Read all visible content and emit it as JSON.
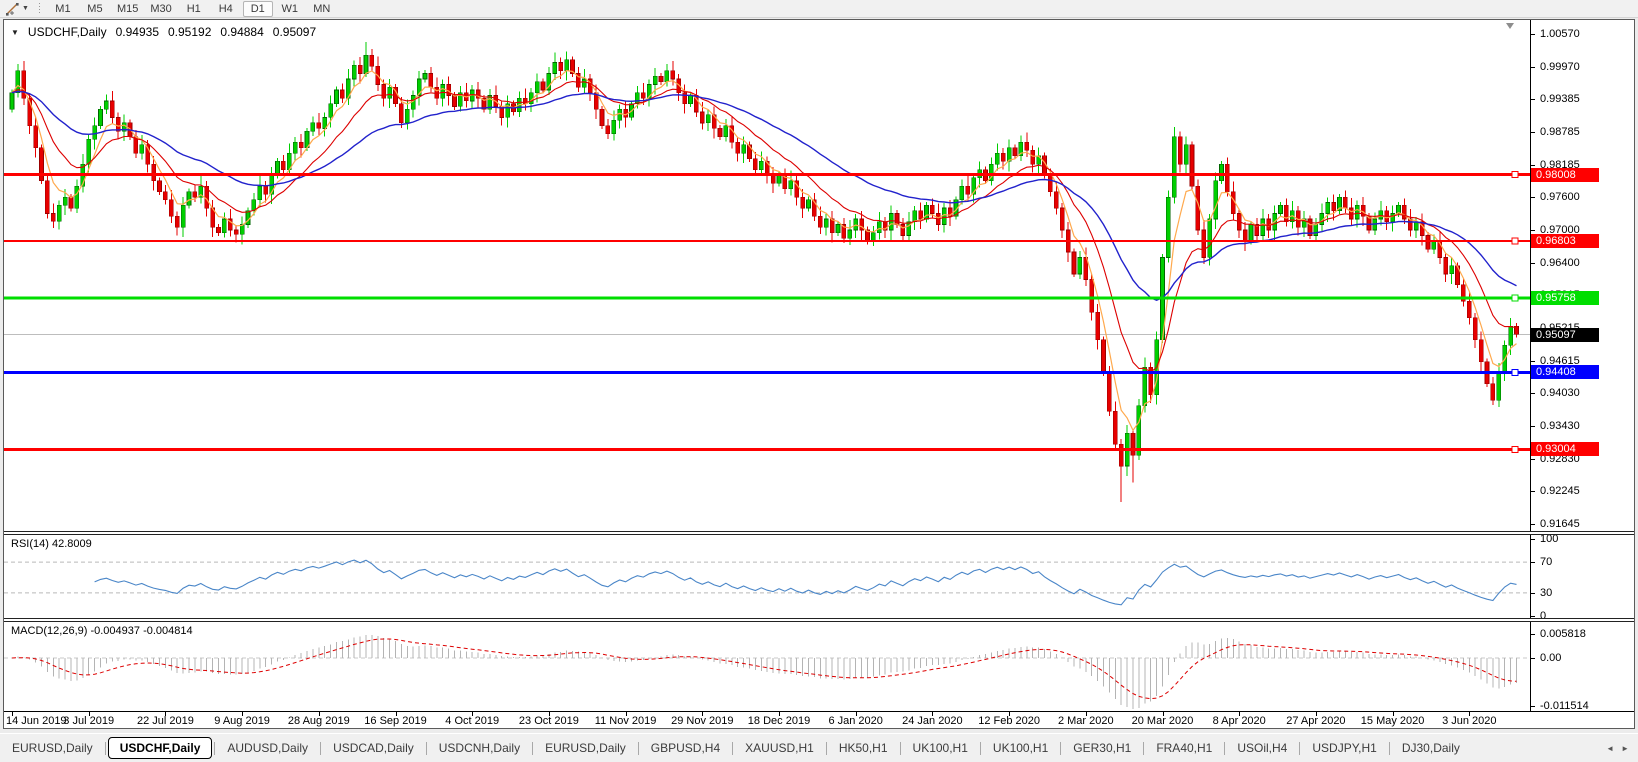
{
  "toolbar": {
    "timeframes": [
      "M1",
      "M5",
      "M15",
      "M30",
      "H1",
      "H4",
      "D1",
      "W1",
      "MN"
    ],
    "active": "D1"
  },
  "chart": {
    "type": "candlestick",
    "symbol_period": "USDCHF,Daily",
    "ohlc": {
      "open": "0.94935",
      "high": "0.95192",
      "low": "0.94884",
      "close": "0.95097"
    },
    "price_ticks": [
      "1.00570",
      "0.99970",
      "0.99385",
      "0.98785",
      "0.98185",
      "0.97600",
      "0.97000",
      "0.96400",
      "0.95815",
      "0.95215",
      "0.94615",
      "0.94030",
      "0.93430",
      "0.92830",
      "0.92245",
      "0.91645"
    ],
    "hlines": [
      {
        "label": "0.98008",
        "value": 0.98008,
        "color": "#FF0000",
        "thickness": 3
      },
      {
        "label": "0.96803",
        "value": 0.96803,
        "color": "#FF0000",
        "thickness": 2
      },
      {
        "label": "0.95758",
        "value": 0.95758,
        "color": "#00DE00",
        "thickness": 3
      },
      {
        "label": "0.94408",
        "value": 0.94408,
        "color": "#0000FF",
        "thickness": 3
      },
      {
        "label": "0.93004",
        "value": 0.93004,
        "color": "#FF0000",
        "thickness": 3
      }
    ],
    "current_price": {
      "label": "0.95097",
      "value": 0.95097,
      "line_color": "#bdbdbd",
      "tag_bg": "#000000"
    },
    "date_ticks": [
      "14 Jun 2019",
      "3 Jul 2019",
      "22 Jul 2019",
      "9 Aug 2019",
      "28 Aug 2019",
      "16 Sep 2019",
      "4 Oct 2019",
      "23 Oct 2019",
      "11 Nov 2019",
      "29 Nov 2019",
      "18 Dec 2019",
      "6 Jan 2020",
      "24 Jan 2020",
      "12 Feb 2020",
      "2 Mar 2020",
      "20 Mar 2020",
      "8 Apr 2020",
      "27 Apr 2020",
      "15 May 2020",
      "3 Jun 2020"
    ],
    "candles_per_date_tick": 13,
    "colors": {
      "up": "#00CE00",
      "up_border": "#006600",
      "down": "#E60000",
      "down_border": "#990000"
    },
    "moving_averages": [
      {
        "name": "fast-orange",
        "period": 5,
        "color": "#FFA94D",
        "width": 1.2
      },
      {
        "name": "mid-red",
        "period": 13,
        "color": "#DD0000",
        "width": 1.1
      },
      {
        "name": "slow-blue",
        "period": 34,
        "color": "#2222CC",
        "width": 1.4
      }
    ],
    "series": {
      "first_open": 0.992,
      "closes": [
        0.995,
        0.999,
        0.994,
        0.989,
        0.985,
        0.979,
        0.973,
        0.9716,
        0.9745,
        0.976,
        0.974,
        0.978,
        0.982,
        0.9865,
        0.989,
        0.992,
        0.9935,
        0.9905,
        0.988,
        0.9895,
        0.987,
        0.984,
        0.9855,
        0.982,
        0.979,
        0.977,
        0.9755,
        0.9725,
        0.9705,
        0.9745,
        0.977,
        0.976,
        0.978,
        0.974,
        0.9705,
        0.9695,
        0.972,
        0.97,
        0.9692,
        0.971,
        0.9735,
        0.9755,
        0.978,
        0.9765,
        0.98,
        0.9825,
        0.981,
        0.984,
        0.986,
        0.985,
        0.988,
        0.9895,
        0.9885,
        0.9905,
        0.993,
        0.9955,
        0.994,
        0.9975,
        1.0,
        0.9985,
        1.0018,
        0.9998,
        0.9965,
        0.994,
        0.996,
        0.993,
        0.9895,
        0.992,
        0.9945,
        0.9975,
        0.9985,
        0.996,
        0.994,
        0.9965,
        0.9945,
        0.9925,
        0.995,
        0.9935,
        0.9955,
        0.994,
        0.992,
        0.9945,
        0.9925,
        0.9905,
        0.993,
        0.9915,
        0.994,
        0.993,
        0.995,
        0.997,
        0.9955,
        0.9985,
        1.0005,
        0.999,
        1.001,
        0.9985,
        0.996,
        0.9975,
        0.995,
        0.992,
        0.989,
        0.9875,
        0.99,
        0.992,
        0.9905,
        0.993,
        0.995,
        0.994,
        0.9965,
        0.998,
        0.997,
        0.999,
        0.9975,
        0.995,
        0.993,
        0.9945,
        0.9915,
        0.9895,
        0.991,
        0.9885,
        0.987,
        0.989,
        0.986,
        0.984,
        0.9855,
        0.983,
        0.981,
        0.9825,
        0.98,
        0.9785,
        0.98,
        0.9775,
        0.979,
        0.976,
        0.974,
        0.9755,
        0.9725,
        0.9705,
        0.972,
        0.9695,
        0.971,
        0.9685,
        0.97,
        0.972,
        0.97,
        0.968,
        0.9695,
        0.9715,
        0.97,
        0.973,
        0.971,
        0.969,
        0.9715,
        0.9735,
        0.972,
        0.9745,
        0.973,
        0.971,
        0.974,
        0.9725,
        0.9755,
        0.978,
        0.9765,
        0.9795,
        0.981,
        0.979,
        0.982,
        0.984,
        0.9825,
        0.985,
        0.9835,
        0.986,
        0.9845,
        0.982,
        0.9835,
        0.98,
        0.977,
        0.974,
        0.97,
        0.966,
        0.962,
        0.965,
        0.961,
        0.955,
        0.95,
        0.944,
        0.937,
        0.931,
        0.927,
        0.933,
        0.929,
        0.938,
        0.945,
        0.94,
        0.95,
        0.965,
        0.976,
        0.987,
        0.982,
        0.9855,
        0.978,
        0.97,
        0.965,
        0.972,
        0.979,
        0.982,
        0.977,
        0.973,
        0.97,
        0.968,
        0.971,
        0.969,
        0.972,
        0.97,
        0.973,
        0.9745,
        0.9715,
        0.9735,
        0.9705,
        0.972,
        0.969,
        0.971,
        0.973,
        0.975,
        0.9735,
        0.976,
        0.974,
        0.972,
        0.9745,
        0.9725,
        0.97,
        0.972,
        0.9735,
        0.9715,
        0.973,
        0.9745,
        0.972,
        0.97,
        0.9715,
        0.969,
        0.9665,
        0.968,
        0.965,
        0.962,
        0.9635,
        0.96,
        0.957,
        0.954,
        0.95,
        0.946,
        0.942,
        0.939,
        0.944,
        0.949,
        0.9525,
        0.951
      ],
      "low_overrides": {
        "188": 0.9205,
        "190": 0.924
      },
      "high_overrides": {
        "60": 1.0042
      }
    }
  },
  "rsi": {
    "label": "RSI(14) 42.8009",
    "period": 14,
    "color": "#4A86C8",
    "levels": [
      70,
      30
    ],
    "axis": [
      {
        "label": "100",
        "value": 100
      },
      {
        "label": "70",
        "value": 70
      },
      {
        "label": "30",
        "value": 30
      },
      {
        "label": "0",
        "value": 0
      }
    ]
  },
  "macd": {
    "label": "MACD(12,26,9) -0.004937 -0.004814",
    "fast": 12,
    "slow": 26,
    "signal": 9,
    "hist_color": "#B4B4B4",
    "signal_color": "#DD0000",
    "axis": [
      {
        "label": "0.005818",
        "value": 0.005818
      },
      {
        "label": "0.00",
        "value": 0
      },
      {
        "label": "-0.011514",
        "value": -0.011514
      }
    ]
  },
  "tabs": {
    "active_index": 1,
    "items": [
      "EURUSD,Daily",
      "USDCHF,Daily",
      "AUDUSD,Daily",
      "USDCAD,Daily",
      "USDCNH,Daily",
      "EURUSD,Daily",
      "GBPUSD,H4",
      "XAUUSD,H1",
      "HK50,H1",
      "UK100,H1",
      "UK100,H1",
      "GER30,H1",
      "FRA40,H1",
      "USOil,H4",
      "USDJPY,H1",
      "DJ30,Daily"
    ]
  }
}
